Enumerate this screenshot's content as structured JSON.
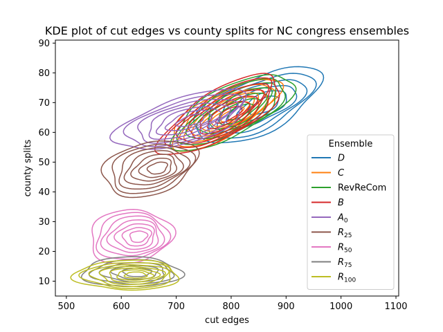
{
  "chart_data": {
    "type": "line",
    "title": "KDE plot of cut edges vs county splits for NC congress ensembles",
    "xlabel": "cut edges",
    "ylabel": "county splits",
    "xlim": [
      480,
      1105
    ],
    "ylim": [
      5,
      91
    ],
    "x_ticks": [
      "500",
      "600",
      "700",
      "800",
      "900",
      "1000",
      "1100"
    ],
    "y_ticks": [
      "10",
      "20",
      "30",
      "40",
      "50",
      "60",
      "70",
      "80",
      "90"
    ],
    "grid": false,
    "legend": {
      "title": "Ensemble",
      "placement": "lower-right"
    },
    "series": [
      {
        "name": "D",
        "sub": "",
        "italic": true,
        "color": "#1f77b4",
        "center": [
          855,
          69
        ],
        "spread": [
          115,
          10
        ],
        "tilt": 8,
        "levels": 6
      },
      {
        "name": "C",
        "sub": "",
        "italic": true,
        "color": "#ff7f0e",
        "center": [
          795,
          66
        ],
        "spread": [
          100,
          8
        ],
        "tilt": 9,
        "levels": 7
      },
      {
        "name": "RevReCom",
        "sub": "",
        "italic": false,
        "color": "#2ca02c",
        "center": [
          810,
          67
        ],
        "spread": [
          110,
          9
        ],
        "tilt": 9,
        "levels": 7
      },
      {
        "name": "B",
        "sub": "",
        "italic": true,
        "color": "#d62728",
        "center": [
          790,
          66
        ],
        "spread": [
          110,
          9
        ],
        "tilt": 10,
        "levels": 7
      },
      {
        "name": "A",
        "sub": "0",
        "italic": true,
        "color": "#9467bd",
        "center": [
          720,
          64
        ],
        "spread": [
          120,
          8
        ],
        "tilt": 6,
        "levels": 7
      },
      {
        "name": "R",
        "sub": "25",
        "italic": true,
        "color": "#8c564b",
        "center": [
          660,
          48
        ],
        "spread": [
          85,
          9
        ],
        "tilt": 3,
        "levels": 7
      },
      {
        "name": "R",
        "sub": "50",
        "italic": true,
        "color": "#e377c2",
        "center": [
          625,
          25
        ],
        "spread": [
          75,
          9
        ],
        "tilt": 1,
        "levels": 7
      },
      {
        "name": "R",
        "sub": "75",
        "italic": true,
        "color": "#7f7f7f",
        "center": [
          625,
          13
        ],
        "spread": [
          90,
          5
        ],
        "tilt": 0,
        "levels": 5
      },
      {
        "name": "R",
        "sub": "100",
        "italic": true,
        "color": "#bcbd22",
        "center": [
          620,
          12
        ],
        "spread": [
          95,
          5
        ],
        "tilt": 0,
        "levels": 7
      }
    ]
  }
}
